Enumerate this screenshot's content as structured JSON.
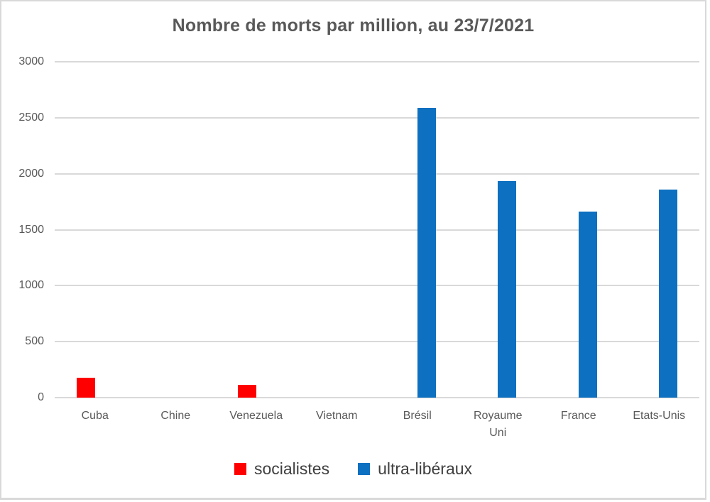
{
  "window": {
    "background": "#ffffff",
    "frame_border_color": "#d9d9d9"
  },
  "chart_data": {
    "type": "bar",
    "title": "Nombre de morts par million, au 23/7/2021",
    "title_color": "#595959",
    "categories": [
      "Cuba",
      "Chine",
      "Venezuela",
      "Vietnam",
      "Brésil",
      "Royaume Uni",
      "France",
      "Etats-Unis"
    ],
    "series": [
      {
        "name": "socialistes",
        "color": "#ff0000",
        "values": [
          180,
          0,
          115,
          0,
          0,
          0,
          0,
          0
        ]
      },
      {
        "name": "ultra-libéraux",
        "color": "#0d70c0",
        "values": [
          0,
          0,
          0,
          0,
          2590,
          1935,
          1660,
          1860
        ]
      }
    ],
    "xlabel": "",
    "ylabel": "",
    "ylim": [
      0,
      3000
    ],
    "yticks": [
      0,
      500,
      1000,
      1500,
      2000,
      2500,
      3000
    ],
    "grid": true,
    "gridline_color": "#d9d9d9",
    "axis_text_color": "#595959",
    "legend_position": "bottom",
    "legend_text_color": "#3f3f3f"
  }
}
